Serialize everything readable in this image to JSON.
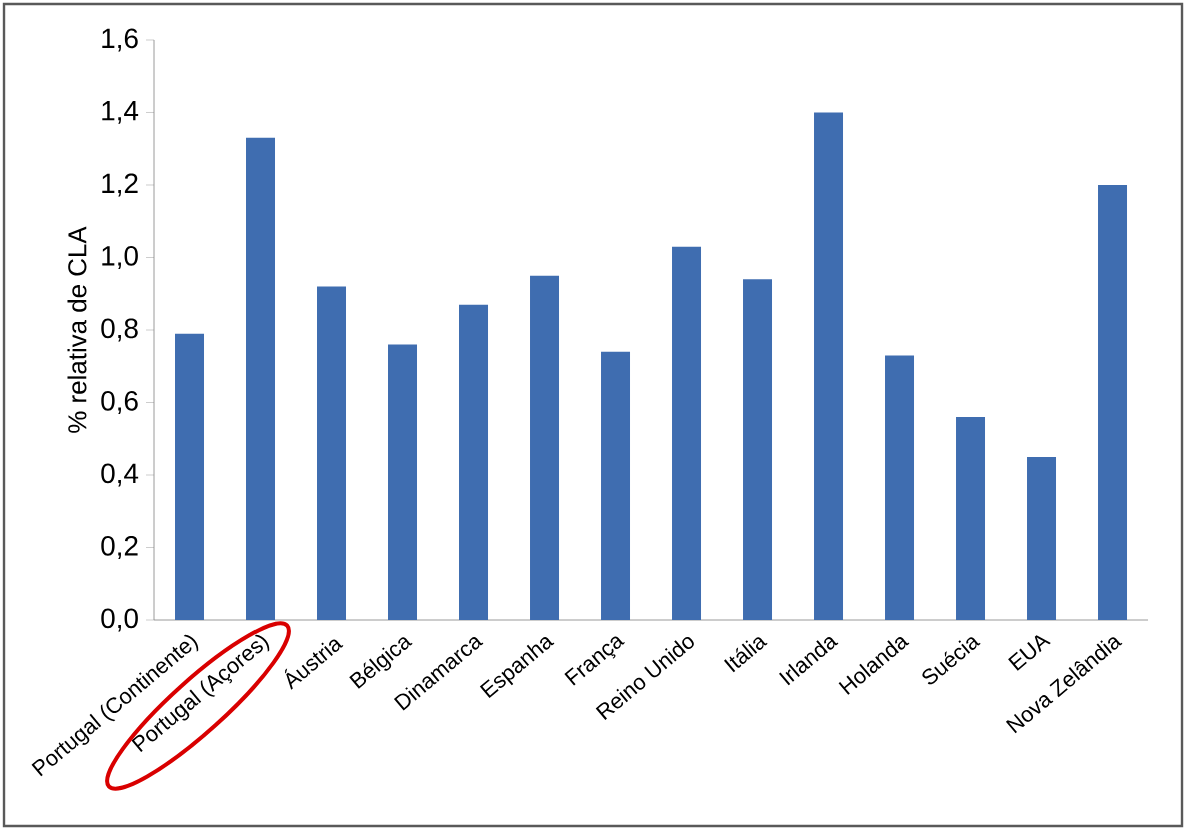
{
  "chart_data": {
    "type": "bar",
    "ylabel": "% relativa de CLA",
    "categories": [
      "Portugal (Continente)",
      "Portugal (Açores)",
      "Áustria",
      "Bélgica",
      "Dinamarca",
      "Espanha",
      "França",
      "Reino Unido",
      "Itália",
      "Irlanda",
      "Holanda",
      "Suécia",
      "EUA",
      "Nova Zelândia"
    ],
    "values": [
      0.79,
      1.33,
      0.92,
      0.76,
      0.87,
      0.95,
      0.74,
      1.03,
      0.94,
      1.4,
      0.73,
      0.56,
      0.45,
      1.2
    ],
    "color": "#3f6db0",
    "ylim": [
      0,
      1.6
    ],
    "yticks": [
      {
        "value": 0,
        "label": "0,0"
      },
      {
        "value": 0.2,
        "label": "0,2"
      },
      {
        "value": 0.4,
        "label": "0,4"
      },
      {
        "value": 0.6,
        "label": "0,6"
      },
      {
        "value": 0.8,
        "label": "0,8"
      },
      {
        "value": 1.0,
        "label": "1,0"
      },
      {
        "value": 1.2,
        "label": "1,2"
      },
      {
        "value": 1.4,
        "label": "1,4"
      },
      {
        "value": 1.6,
        "label": "1,6"
      }
    ],
    "grid": false
  }
}
